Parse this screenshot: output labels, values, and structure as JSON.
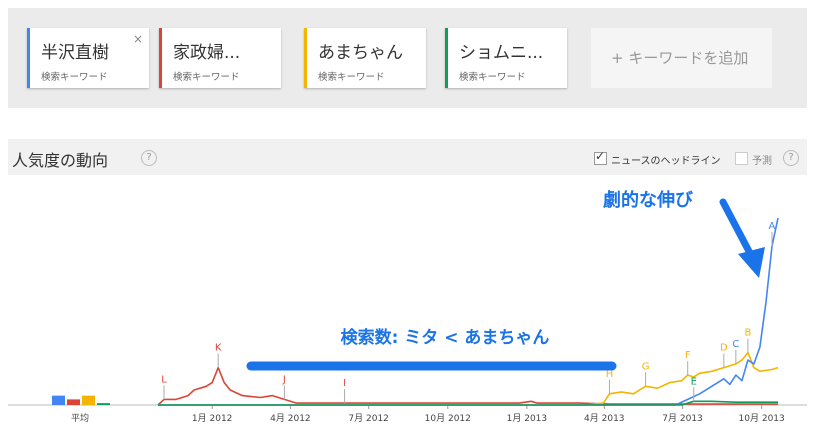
{
  "search_terms": [
    {
      "term": "半沢直樹",
      "subtitle": "検索キーワード",
      "color": "#4285f4",
      "close": "×"
    },
    {
      "term": "家政婦...",
      "subtitle": "検索キーワード",
      "color": "#db4437"
    },
    {
      "term": "あまちゃん",
      "subtitle": "検索キーワード",
      "color": "#f4b400"
    },
    {
      "term": "ショムニ...",
      "subtitle": "検索キーワード",
      "color": "#0f9d58"
    }
  ],
  "add_keyword": "+ キーワードを追加",
  "section": {
    "title": "人気度の動向",
    "help": "?",
    "news_headlines_label": "ニュースのヘッドライン",
    "news_headlines_checked": true,
    "forecast_label": "予測",
    "forecast_checked": false
  },
  "annotations": {
    "dramatic_growth": "劇的な伸び",
    "search_volume": "検索数: ミタ < あまちゃん"
  },
  "chart_data": {
    "type": "line",
    "x_ticks": [
      "1月 2012",
      "4月 2012",
      "7月 2012",
      "10月 2012",
      "1月 2013",
      "4月 2013",
      "7月 2013",
      "10月 2013"
    ],
    "average_label": "平均",
    "averages": [
      {
        "name": "半沢直樹",
        "value": 5
      },
      {
        "name": "家政婦...",
        "value": 3
      },
      {
        "name": "あまちゃん",
        "value": 5
      },
      {
        "name": "ショムニ...",
        "value": 1
      }
    ],
    "ylim": [
      0,
      100
    ],
    "x_range": [
      "2011-10-30",
      "2013-10-20"
    ],
    "series": [
      {
        "name": "家政婦...",
        "color": "#db4437",
        "points": [
          [
            "2011-10-30",
            0
          ],
          [
            "2011-11-06",
            3
          ],
          [
            "2011-11-20",
            3
          ],
          [
            "2011-12-04",
            5
          ],
          [
            "2011-12-11",
            8
          ],
          [
            "2011-12-25",
            10
          ],
          [
            "2012-01-01",
            12
          ],
          [
            "2012-01-08",
            20
          ],
          [
            "2012-01-15",
            12
          ],
          [
            "2012-01-22",
            8
          ],
          [
            "2012-02-05",
            5
          ],
          [
            "2012-02-26",
            4
          ],
          [
            "2012-03-11",
            5
          ],
          [
            "2012-03-25",
            3
          ],
          [
            "2012-04-08",
            1
          ],
          [
            "2012-05-06",
            1
          ],
          [
            "2012-06-03",
            1
          ],
          [
            "2012-07-01",
            1
          ],
          [
            "2012-09-02",
            1
          ],
          [
            "2012-11-04",
            1
          ],
          [
            "2012-12-23",
            1
          ],
          [
            "2013-01-06",
            2
          ],
          [
            "2013-01-13",
            1
          ],
          [
            "2013-02-03",
            1
          ],
          [
            "2013-03-03",
            1
          ],
          [
            "2013-04-07",
            0.5
          ],
          [
            "2013-06-02",
            0.5
          ],
          [
            "2013-08-04",
            0.5
          ],
          [
            "2013-10-20",
            0.5
          ]
        ]
      },
      {
        "name": "あまちゃん",
        "color": "#f4b400",
        "points": [
          [
            "2011-10-30",
            0
          ],
          [
            "2013-03-10",
            0
          ],
          [
            "2013-03-31",
            1
          ],
          [
            "2013-04-07",
            6
          ],
          [
            "2013-04-21",
            7
          ],
          [
            "2013-05-05",
            6
          ],
          [
            "2013-05-19",
            10
          ],
          [
            "2013-06-02",
            9
          ],
          [
            "2013-06-16",
            12
          ],
          [
            "2013-06-30",
            13
          ],
          [
            "2013-07-07",
            16
          ],
          [
            "2013-07-14",
            15
          ],
          [
            "2013-07-21",
            17
          ],
          [
            "2013-08-04",
            18
          ],
          [
            "2013-08-18",
            20
          ],
          [
            "2013-09-01",
            22
          ],
          [
            "2013-09-08",
            24
          ],
          [
            "2013-09-15",
            28
          ],
          [
            "2013-09-22",
            20
          ],
          [
            "2013-09-29",
            18
          ],
          [
            "2013-10-13",
            19
          ],
          [
            "2013-10-20",
            20
          ]
        ]
      },
      {
        "name": "半沢直樹",
        "color": "#4285f4",
        "points": [
          [
            "2011-10-30",
            0
          ],
          [
            "2013-06-23",
            0
          ],
          [
            "2013-07-07",
            3
          ],
          [
            "2013-07-21",
            6
          ],
          [
            "2013-08-04",
            10
          ],
          [
            "2013-08-18",
            14
          ],
          [
            "2013-08-25",
            11
          ],
          [
            "2013-09-01",
            16
          ],
          [
            "2013-09-08",
            13
          ],
          [
            "2013-09-15",
            24
          ],
          [
            "2013-09-22",
            22
          ],
          [
            "2013-09-29",
            31
          ],
          [
            "2013-10-06",
            55
          ],
          [
            "2013-10-13",
            85
          ],
          [
            "2013-10-20",
            100
          ]
        ]
      },
      {
        "name": "ショムニ...",
        "color": "#0f9d58",
        "points": [
          [
            "2011-10-30",
            0
          ],
          [
            "2013-06-30",
            0
          ],
          [
            "2013-07-14",
            2
          ],
          [
            "2013-08-04",
            2
          ],
          [
            "2013-09-01",
            1.5
          ],
          [
            "2013-10-20",
            1.5
          ]
        ]
      }
    ],
    "markers": [
      {
        "label": "L",
        "date": "2011-11-06",
        "value": 3,
        "color": "#db4437"
      },
      {
        "label": "K",
        "date": "2012-01-08",
        "value": 20,
        "color": "#db4437"
      },
      {
        "label": "J",
        "date": "2012-03-25",
        "value": 3,
        "color": "#db4437"
      },
      {
        "label": "I",
        "date": "2012-06-03",
        "value": 1,
        "color": "#db4437"
      },
      {
        "label": "H",
        "date": "2013-04-07",
        "value": 6,
        "color": "#f4b400"
      },
      {
        "label": "G",
        "date": "2013-05-19",
        "value": 10,
        "color": "#f4b400"
      },
      {
        "label": "F",
        "date": "2013-07-07",
        "value": 16,
        "color": "#f4b400"
      },
      {
        "label": "E",
        "date": "2013-07-14",
        "value": 2,
        "color": "#0f9d58"
      },
      {
        "label": "D",
        "date": "2013-08-18",
        "value": 20,
        "color": "#f4b400"
      },
      {
        "label": "C",
        "date": "2013-09-01",
        "value": 22,
        "color": "#4285f4"
      },
      {
        "label": "B",
        "date": "2013-09-15",
        "value": 28,
        "color": "#f4b400"
      },
      {
        "label": "A",
        "date": "2013-10-13",
        "value": 85,
        "color": "#4285f4"
      }
    ]
  }
}
